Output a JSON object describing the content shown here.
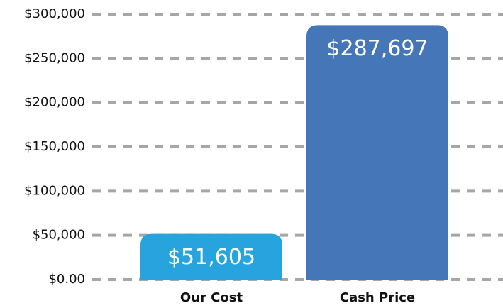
{
  "chart_data": {
    "type": "bar",
    "categories": [
      "Our Cost",
      "Cash Price"
    ],
    "values": [
      51605,
      287697
    ],
    "value_labels": [
      "$51,605",
      "$287,697"
    ],
    "colors": [
      "#27a4de",
      "#4577b8"
    ],
    "ylim": [
      0,
      300000
    ],
    "yticks": [
      {
        "value": 0,
        "label": "$0.00"
      },
      {
        "value": 50000,
        "label": "$50,000"
      },
      {
        "value": 100000,
        "label": "$100,000"
      },
      {
        "value": 150000,
        "label": "$150,000"
      },
      {
        "value": 200000,
        "label": "$200,000"
      },
      {
        "value": 250000,
        "label": "$250,000"
      },
      {
        "value": 300000,
        "label": "$300,000"
      }
    ],
    "grid": true
  }
}
